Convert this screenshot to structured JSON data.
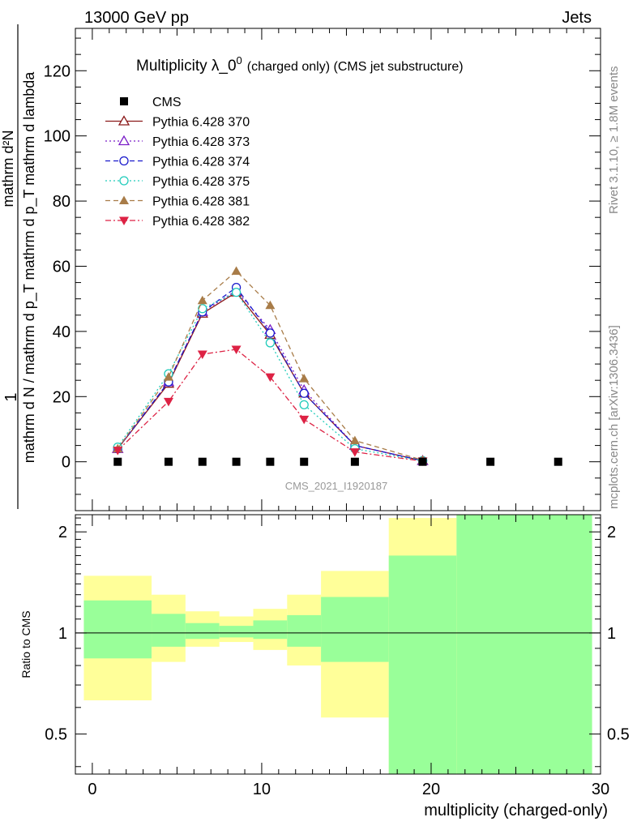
{
  "header": {
    "left": "13000 GeV pp",
    "right": "Jets"
  },
  "side_labels": {
    "rivet": "Rivet 3.1.10, ≥ 1.8M events",
    "mcplots": "mcplots.cern.ch [arXiv:1306.3436]"
  },
  "chart_data": [
    {
      "type": "line",
      "title_main": "Multiplicity λ_0",
      "title_sup": "0",
      "title_small": "(charged only) (CMS jet substructure)",
      "watermark": "CMS_2021_I1920187",
      "ylabel": {
        "left": "1",
        "frac_num": "mathrm d²N",
        "frac_den": "mathrm d N / mathrm d p_T mathrm d p_T mathrm d lambda",
        "right": "mathrm d N / mathrm d p_T mathrm d p_T mathrm d lambda"
      },
      "xlim": [
        -1,
        30
      ],
      "ylim": [
        -15,
        133
      ],
      "yticks": [
        0,
        20,
        40,
        60,
        80,
        100,
        120
      ],
      "legend_position": "top-left",
      "series": [
        {
          "name": "CMS",
          "color": "#000000",
          "marker": "square",
          "dash": "none",
          "x": [
            1.5,
            4.5,
            6.5,
            8.5,
            10.5,
            12.5,
            15.5,
            19.5,
            23.5,
            27.5
          ],
          "y": [
            0,
            0,
            0,
            0,
            0,
            0,
            0,
            0,
            0,
            0
          ]
        },
        {
          "name": "Pythia 6.428 370",
          "color": "#8b1a1a",
          "marker": "triangle-open",
          "dash": "solid",
          "x": [
            1.5,
            4.5,
            6.5,
            8.5,
            10.5,
            12.5,
            15.5,
            19.5
          ],
          "y": [
            4,
            24,
            45.5,
            52,
            39,
            21,
            5,
            0.3
          ]
        },
        {
          "name": "Pythia 6.428 373",
          "color": "#7b1fc8",
          "marker": "triangle-open",
          "dash": "dotted",
          "x": [
            1.5,
            4.5,
            6.5,
            8.5,
            10.5,
            12.5,
            15.5,
            19.5
          ],
          "y": [
            4,
            24.5,
            46,
            52.5,
            40.5,
            22,
            5,
            0.3
          ]
        },
        {
          "name": "Pythia 6.428 374",
          "color": "#1a1acc",
          "marker": "circle-open",
          "dash": "dashed",
          "x": [
            1.5,
            4.5,
            6.5,
            8.5,
            10.5,
            12.5,
            15.5,
            19.5
          ],
          "y": [
            4,
            24.5,
            46,
            53.5,
            39.5,
            21,
            5,
            0.3
          ]
        },
        {
          "name": "Pythia 6.428 375",
          "color": "#22ccbb",
          "marker": "circle-open",
          "dash": "dotted",
          "x": [
            1.5,
            4.5,
            6.5,
            8.5,
            10.5,
            12.5,
            15.5,
            19.5
          ],
          "y": [
            4.5,
            27,
            47,
            52,
            36.5,
            17.5,
            4,
            0.3
          ]
        },
        {
          "name": "Pythia 6.428 381",
          "color": "#a87c48",
          "marker": "triangle-filled",
          "dash": "dashed",
          "x": [
            1.5,
            4.5,
            6.5,
            8.5,
            10.5,
            12.5,
            15.5,
            19.5
          ],
          "y": [
            4,
            26,
            49.5,
            58.5,
            48,
            25.5,
            6.5,
            0.5
          ]
        },
        {
          "name": "Pythia 6.428 382",
          "color": "#dd2244",
          "marker": "triangle-down-filled",
          "dash": "dashdot",
          "x": [
            1.5,
            4.5,
            6.5,
            8.5,
            10.5,
            12.5,
            15.5,
            19.5
          ],
          "y": [
            3.5,
            18.5,
            33,
            34.5,
            26,
            13,
            3,
            0.2
          ]
        }
      ]
    },
    {
      "type": "area",
      "ylabel": "Ratio to CMS",
      "xlabel": "multiplicity (charged-only)",
      "xlim": [
        -1,
        30
      ],
      "ylim": [
        0.38,
        2.25
      ],
      "xticks": [
        0,
        10,
        20,
        30
      ],
      "yticks": [
        0.5,
        1,
        2
      ],
      "reference_line": 1,
      "bands": {
        "green_color": "#99ff99",
        "yellow_color": "#ffff99",
        "bins": [
          {
            "lo": -0.5,
            "hi": 3.5,
            "green": [
              0.84,
              1.25
            ],
            "yellow": [
              0.63,
              1.48
            ]
          },
          {
            "lo": 3.5,
            "hi": 5.5,
            "green": [
              0.91,
              1.14
            ],
            "yellow": [
              0.82,
              1.3
            ]
          },
          {
            "lo": 5.5,
            "hi": 7.5,
            "green": [
              0.96,
              1.07
            ],
            "yellow": [
              0.91,
              1.16
            ]
          },
          {
            "lo": 7.5,
            "hi": 9.5,
            "green": [
              0.97,
              1.05
            ],
            "yellow": [
              0.94,
              1.12
            ]
          },
          {
            "lo": 9.5,
            "hi": 11.5,
            "green": [
              0.96,
              1.09
            ],
            "yellow": [
              0.89,
              1.18
            ]
          },
          {
            "lo": 11.5,
            "hi": 13.5,
            "green": [
              0.91,
              1.13
            ],
            "yellow": [
              0.8,
              1.3
            ]
          },
          {
            "lo": 13.5,
            "hi": 17.5,
            "green": [
              0.82,
              1.28
            ],
            "yellow": [
              0.56,
              1.53
            ]
          },
          {
            "lo": 17.5,
            "hi": 21.5,
            "green": [
              0.38,
              1.7
            ],
            "yellow": [
              0.38,
              2.2
            ]
          },
          {
            "lo": 21.5,
            "hi": 29.5,
            "green": [
              0.38,
              2.25
            ],
            "yellow": [
              0.38,
              2.25
            ]
          }
        ]
      }
    }
  ]
}
